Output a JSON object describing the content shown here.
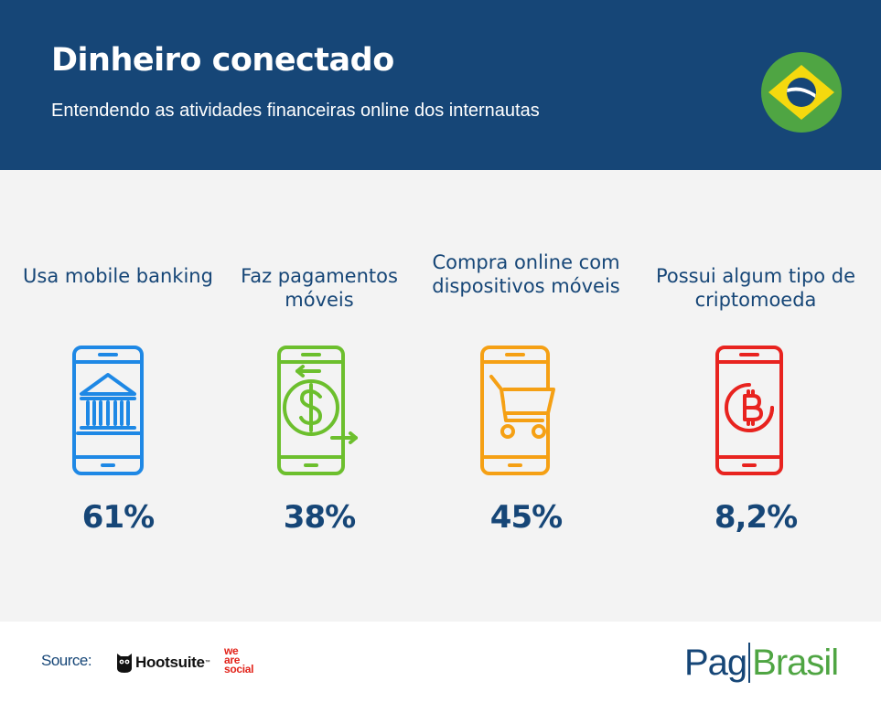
{
  "header": {
    "title": "Dinheiro conectado",
    "subtitle": "Entendendo as atividades financeiras online dos internautas",
    "flag_icon": "brazil-flag-icon",
    "colors": {
      "background": "#164677",
      "text": "#ffffff"
    }
  },
  "stats": [
    {
      "label": "Usa mobile banking",
      "value": "61%",
      "icon": "mobile-bank-icon",
      "color": "#1e88e5"
    },
    {
      "label": "Faz pagamentos móveis",
      "value": "38%",
      "icon": "mobile-payment-icon",
      "color": "#6cbf2d"
    },
    {
      "label": "Compra online com dispositivos móveis",
      "value": "45%",
      "icon": "mobile-shopping-cart-icon",
      "color": "#f5a014"
    },
    {
      "label": "Possui algum tipo de criptomoeda",
      "value": "8,2%",
      "icon": "mobile-bitcoin-icon",
      "color": "#e8231f"
    }
  ],
  "footer": {
    "source_label": "Source:",
    "hootsuite": "Hootsuite",
    "hootsuite_tm": "™",
    "we_are_social": [
      "we",
      "are",
      "social"
    ],
    "pagbrasil": {
      "part1": "Pag",
      "part2": "Brasil"
    }
  }
}
